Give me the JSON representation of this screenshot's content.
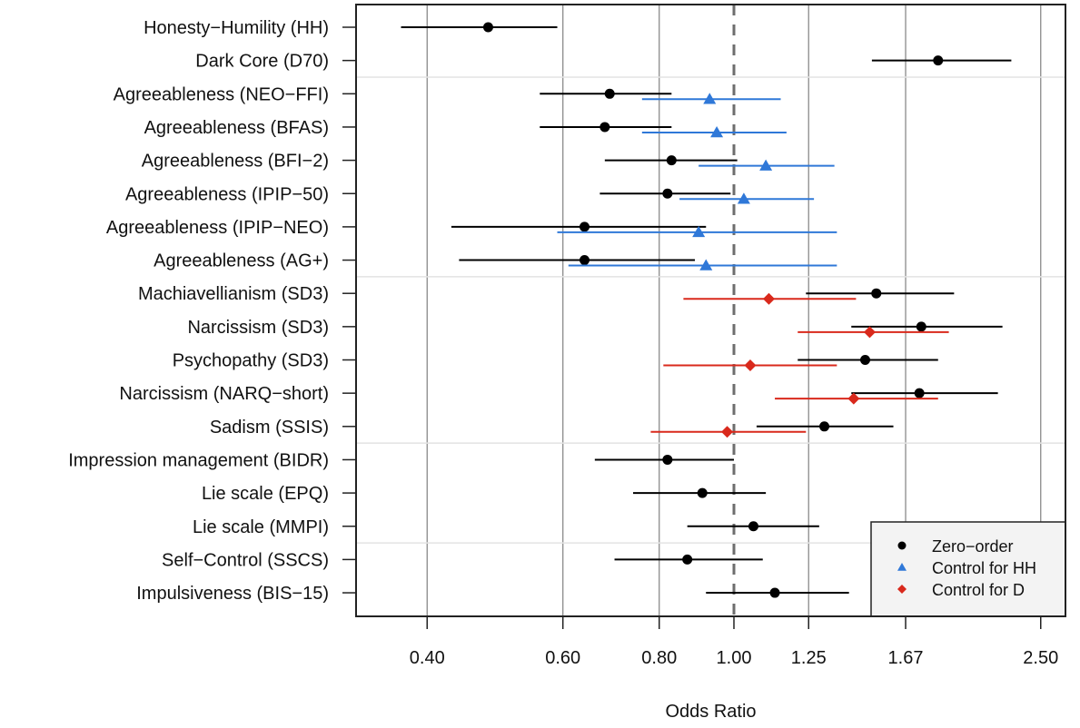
{
  "chart_data": {
    "type": "forest",
    "title": "",
    "xlabel": "Odds Ratio",
    "ylabel": "",
    "xscale": "log",
    "xlim": [
      0.345,
      2.74
    ],
    "xticks": [
      0.4,
      0.6,
      0.8,
      1.0,
      1.25,
      1.67,
      2.5
    ],
    "xtick_labels": [
      "0.40",
      "0.60",
      "0.80",
      "1.00",
      "1.25",
      "1.67",
      "2.50"
    ],
    "grid": "vertical at ticks",
    "reference_line": 1.0,
    "group_separators_after_rows": [
      2,
      8,
      13,
      16
    ],
    "legend": {
      "placement": "bottom-right",
      "entries": [
        {
          "label": "Zero−order",
          "series": "zero"
        },
        {
          "label": "Control for HH",
          "series": "hh"
        },
        {
          "label": "Control for D",
          "series": "d"
        }
      ]
    },
    "series_styles": {
      "zero": {
        "color": "#000000",
        "marker": "circle"
      },
      "hh": {
        "color": "#2f78d8",
        "marker": "triangle"
      },
      "d": {
        "color": "#d9291c",
        "marker": "diamond"
      }
    },
    "rows": [
      {
        "label": "Honesty−Humility (HH)",
        "zero": {
          "or": 0.48,
          "lo": 0.37,
          "hi": 0.59
        }
      },
      {
        "label": "Dark Core (D70)",
        "zero": {
          "or": 1.84,
          "lo": 1.51,
          "hi": 2.29
        }
      },
      {
        "label": "Agreeableness (NEO−FFI)",
        "zero": {
          "or": 0.69,
          "lo": 0.56,
          "hi": 0.83
        },
        "hh": {
          "or": 0.93,
          "lo": 0.76,
          "hi": 1.15
        }
      },
      {
        "label": "Agreeableness (BFAS)",
        "zero": {
          "or": 0.68,
          "lo": 0.56,
          "hi": 0.83
        },
        "hh": {
          "or": 0.95,
          "lo": 0.76,
          "hi": 1.17
        }
      },
      {
        "label": "Agreeableness (BFI−2)",
        "zero": {
          "or": 0.83,
          "lo": 0.68,
          "hi": 1.01
        },
        "hh": {
          "or": 1.1,
          "lo": 0.9,
          "hi": 1.35
        }
      },
      {
        "label": "Agreeableness (IPIP−50)",
        "zero": {
          "or": 0.82,
          "lo": 0.67,
          "hi": 0.99
        },
        "hh": {
          "or": 1.03,
          "lo": 0.85,
          "hi": 1.27
        }
      },
      {
        "label": "Agreeableness (IPIP−NEO)",
        "zero": {
          "or": 0.64,
          "lo": 0.43,
          "hi": 0.92
        },
        "hh": {
          "or": 0.9,
          "lo": 0.59,
          "hi": 1.36
        }
      },
      {
        "label": "Agreeableness (AG+)",
        "zero": {
          "or": 0.64,
          "lo": 0.44,
          "hi": 0.89
        },
        "hh": {
          "or": 0.92,
          "lo": 0.61,
          "hi": 1.36
        }
      },
      {
        "label": "Machiavellianism (SD3)",
        "zero": {
          "or": 1.53,
          "lo": 1.24,
          "hi": 1.93
        },
        "d": {
          "or": 1.11,
          "lo": 0.86,
          "hi": 1.44
        }
      },
      {
        "label": "Narcissism (SD3)",
        "zero": {
          "or": 1.75,
          "lo": 1.42,
          "hi": 2.23
        },
        "d": {
          "or": 1.5,
          "lo": 1.21,
          "hi": 1.9
        }
      },
      {
        "label": "Psychopathy (SD3)",
        "zero": {
          "or": 1.48,
          "lo": 1.21,
          "hi": 1.84
        },
        "d": {
          "or": 1.05,
          "lo": 0.81,
          "hi": 1.36
        }
      },
      {
        "label": "Narcissism (NARQ−short)",
        "zero": {
          "or": 1.74,
          "lo": 1.42,
          "hi": 2.2
        },
        "d": {
          "or": 1.43,
          "lo": 1.13,
          "hi": 1.84
        }
      },
      {
        "label": "Sadism (SSIS)",
        "zero": {
          "or": 1.31,
          "lo": 1.07,
          "hi": 1.61
        },
        "d": {
          "or": 0.98,
          "lo": 0.78,
          "hi": 1.24
        }
      },
      {
        "label": "Impression management (BIDR)",
        "zero": {
          "or": 0.82,
          "lo": 0.66,
          "hi": 1.0
        }
      },
      {
        "label": "Lie scale (EPQ)",
        "zero": {
          "or": 0.91,
          "lo": 0.74,
          "hi": 1.1
        }
      },
      {
        "label": "Lie scale (MMPI)",
        "zero": {
          "or": 1.06,
          "lo": 0.87,
          "hi": 1.29
        }
      },
      {
        "label": "Self−Control (SSCS)",
        "zero": {
          "or": 0.87,
          "lo": 0.7,
          "hi": 1.09
        }
      },
      {
        "label": "Impulsiveness (BIS−15)",
        "zero": {
          "or": 1.13,
          "lo": 0.92,
          "hi": 1.41
        }
      }
    ]
  }
}
